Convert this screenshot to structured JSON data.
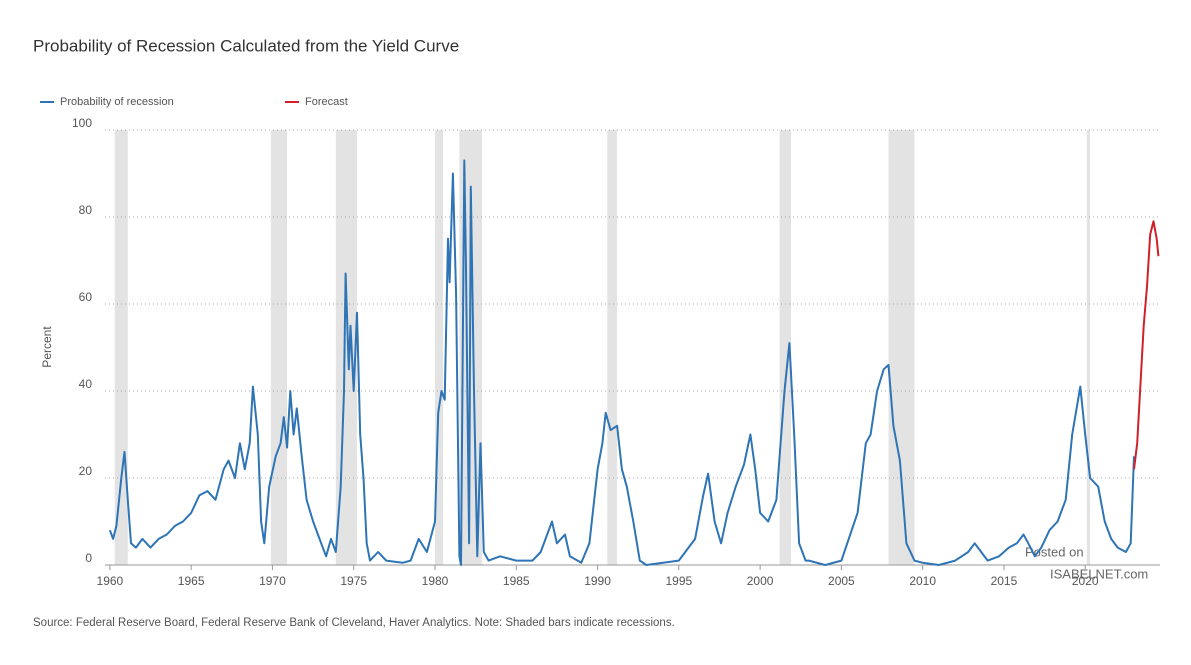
{
  "chart_data": {
    "type": "line",
    "title": "Probability of Recession Calculated from the Yield Curve",
    "y_label": "Percent",
    "source": "Source: Federal Reserve Board, Federal Reserve Bank of Cleveland, Haver Analytics. Note: Shaded bars indicate recessions.",
    "annotations": [
      "Posted on",
      "ISABELNET.com"
    ],
    "xlim": [
      1959.7,
      2024.6
    ],
    "xticks": [
      1960,
      1965,
      1970,
      1975,
      1980,
      1985,
      1990,
      1995,
      2000,
      2005,
      2010,
      2015,
      2020
    ],
    "ylim": [
      0,
      100
    ],
    "yticks": [
      0,
      20,
      40,
      60,
      80,
      100
    ],
    "grid": true,
    "recessions": [
      [
        1960.3,
        1961.1
      ],
      [
        1969.9,
        1970.9
      ],
      [
        1973.9,
        1975.2
      ],
      [
        1980.0,
        1980.5
      ],
      [
        1981.5,
        1982.9
      ],
      [
        1990.6,
        1991.2
      ],
      [
        2001.2,
        2001.9
      ],
      [
        2007.9,
        2009.5
      ],
      [
        2020.1,
        2020.3
      ]
    ],
    "recession_color": "#e3e3e3",
    "series": [
      {
        "name": "Probability of recession",
        "color": "#2f74b5",
        "x": [
          1960.0,
          1960.2,
          1960.4,
          1960.7,
          1960.9,
          1961.1,
          1961.3,
          1961.6,
          1962,
          1962.5,
          1963,
          1963.5,
          1964,
          1964.5,
          1965,
          1965.5,
          1966,
          1966.5,
          1967,
          1967.3,
          1967.7,
          1968,
          1968.3,
          1968.6,
          1968.8,
          1969.1,
          1969.3,
          1969.5,
          1969.8,
          1970.2,
          1970.5,
          1970.7,
          1970.9,
          1971.1,
          1971.3,
          1971.5,
          1971.8,
          1972.1,
          1972.5,
          1973,
          1973.3,
          1973.6,
          1973.9,
          1974.2,
          1974.4,
          1974.5,
          1974.7,
          1974.8,
          1975.0,
          1975.2,
          1975.4,
          1975.6,
          1975.8,
          1976,
          1976.5,
          1977,
          1978,
          1978.5,
          1979,
          1979.5,
          1980.0,
          1980.2,
          1980.4,
          1980.6,
          1980.8,
          1980.9,
          1981.1,
          1981.3,
          1981.5,
          1981.6,
          1981.8,
          1981.9,
          1982.1,
          1982.2,
          1982.4,
          1982.6,
          1982.8,
          1983.0,
          1983.3,
          1984,
          1985,
          1986,
          1986.5,
          1987.2,
          1987.5,
          1988,
          1988.3,
          1989,
          1989.5,
          1990,
          1990.3,
          1990.5,
          1990.8,
          1991.2,
          1991.5,
          1991.8,
          1992.2,
          1992.6,
          1993,
          1995,
          1996,
          1996.5,
          1996.8,
          1997.2,
          1997.6,
          1998,
          1998.5,
          1999,
          1999.4,
          1999.7,
          2000,
          2000.5,
          2001.0,
          2001.2,
          2001.5,
          2001.8,
          2002.1,
          2002.4,
          2002.8,
          2003,
          2004,
          2005,
          2006,
          2006.5,
          2006.8,
          2007.2,
          2007.6,
          2007.9,
          2008.2,
          2008.6,
          2009,
          2009.5,
          2010,
          2011,
          2012,
          2012.8,
          2013.2,
          2013.6,
          2014,
          2014.7,
          2015.3,
          2015.8,
          2016.2,
          2016.5,
          2016.9,
          2017.3,
          2017.8,
          2018.3,
          2018.8,
          2019.2,
          2019.7,
          2020.0,
          2020.3,
          2020.8,
          2021.2,
          2021.6,
          2022,
          2022.5,
          2022.8,
          2023.0
        ],
        "values": [
          8,
          6,
          9,
          20,
          26,
          15,
          5,
          4,
          6,
          4,
          6,
          7,
          9,
          10,
          12,
          16,
          17,
          15,
          22,
          24,
          20,
          28,
          22,
          28,
          41,
          30,
          10,
          5,
          18,
          25,
          28,
          34,
          27,
          40,
          30,
          36,
          25,
          15,
          10,
          5,
          2,
          6,
          3,
          18,
          40,
          67,
          45,
          55,
          40,
          58,
          30,
          20,
          5,
          1,
          3,
          1,
          0.5,
          1,
          6,
          3,
          10,
          35,
          40,
          38,
          75,
          65,
          90,
          62,
          2,
          0,
          93,
          70,
          5,
          87,
          40,
          2,
          28,
          3,
          1,
          2,
          1,
          1,
          3,
          10,
          5,
          7,
          2,
          0.5,
          5,
          22,
          28,
          35,
          31,
          32,
          22,
          18,
          10,
          1,
          0,
          1,
          6,
          16,
          21,
          10,
          5,
          12,
          18,
          23,
          30,
          22,
          12,
          10,
          15,
          25,
          40,
          51,
          30,
          5,
          1,
          1,
          0,
          1,
          12,
          28,
          30,
          40,
          45,
          46,
          32,
          24,
          5,
          1,
          0.5,
          0,
          1,
          3,
          5,
          3,
          1,
          2,
          4,
          5,
          7,
          5,
          2,
          4,
          8,
          10,
          15,
          30,
          41,
          30,
          20,
          18,
          10,
          6,
          4,
          3,
          5,
          25
        ]
      },
      {
        "name": "Forecast",
        "color": "#d0212a",
        "x": [
          2023.0,
          2023.2,
          2023.6,
          2023.8,
          2024.0,
          2024.2,
          2024.4,
          2024.5
        ],
        "values": [
          22,
          28,
          55,
          64,
          76,
          79,
          75,
          71
        ]
      }
    ]
  }
}
